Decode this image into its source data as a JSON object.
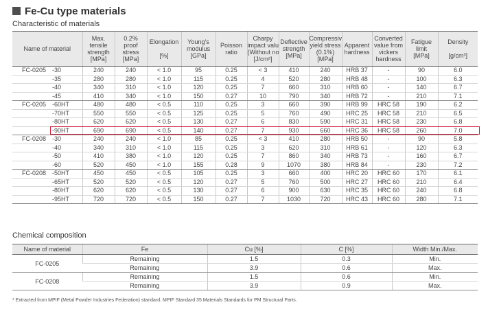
{
  "title": "Fe-Cu type materials",
  "char_section": "Characteristic of materials",
  "char_headers": [
    [
      "Name of material"
    ],
    [
      "Max.",
      "tensile",
      "strength",
      "[MPa]"
    ],
    [
      "0.2%",
      "proof",
      "stress",
      "[MPa]"
    ],
    [
      "Elongation",
      "",
      "[%]"
    ],
    [
      "Young's",
      "modulus",
      "[GPa]"
    ],
    [
      "Poisson",
      "ratio"
    ],
    [
      "Charpy",
      "impact value",
      "(Without notch)",
      "[J/cm²]"
    ],
    [
      "Deflective",
      "strength",
      "[MPa]"
    ],
    [
      "Compressive",
      "yield stress",
      "(0.1%)",
      "[MPa]"
    ],
    [
      "Apparent",
      "hardness"
    ],
    [
      "Converted",
      "value from",
      "vickers",
      "hardness"
    ],
    [
      "Fatigue",
      "limit",
      "[MPa]"
    ],
    [
      "Density",
      "",
      "[g/cm³]"
    ]
  ],
  "char_groups": [
    {
      "name": "FC-0205",
      "rows": [
        [
          "-30",
          "240",
          "240",
          "< 1.0",
          "95",
          "0.25",
          "< 3",
          "410",
          "240",
          "HRB 37",
          "-",
          "90",
          "6.0"
        ],
        [
          "-35",
          "280",
          "280",
          "< 1.0",
          "115",
          "0.25",
          "4",
          "520",
          "280",
          "HRB 48",
          "-",
          "100",
          "6.3"
        ],
        [
          "-40",
          "340",
          "310",
          "< 1.0",
          "120",
          "0.25",
          "7",
          "660",
          "310",
          "HRB 60",
          "-",
          "140",
          "6.7"
        ],
        [
          "-45",
          "410",
          "340",
          "< 1.0",
          "150",
          "0.27",
          "10",
          "790",
          "340",
          "HRB 72",
          "-",
          "210",
          "7.1"
        ]
      ]
    },
    {
      "name": "FC-0205",
      "rows": [
        [
          "-60HT",
          "480",
          "480",
          "< 0.5",
          "110",
          "0.25",
          "3",
          "660",
          "390",
          "HRB 99",
          "HRC 58",
          "190",
          "6.2"
        ],
        [
          "-70HT",
          "550",
          "550",
          "< 0.5",
          "125",
          "0.25",
          "5",
          "760",
          "490",
          "HRC 25",
          "HRC 58",
          "210",
          "6.5"
        ],
        [
          "-80HT",
          "620",
          "620",
          "< 0.5",
          "130",
          "0.27",
          "6",
          "830",
          "590",
          "HRC 31",
          "HRC 58",
          "230",
          "6.8"
        ],
        [
          "-90HT",
          "690",
          "690",
          "< 0.5",
          "140",
          "0.27",
          "7",
          "930",
          "660",
          "HRC 36",
          "HRC 58",
          "260",
          "7.0"
        ]
      ]
    },
    {
      "name": "FC-0208",
      "rows": [
        [
          "-30",
          "240",
          "240",
          "< 1.0",
          "85",
          "0.25",
          "< 3",
          "410",
          "280",
          "HRB 50",
          "-",
          "90",
          "5.8"
        ],
        [
          "-40",
          "340",
          "310",
          "< 1.0",
          "115",
          "0.25",
          "3",
          "620",
          "310",
          "HRB 61",
          "-",
          "120",
          "6.3"
        ],
        [
          "-50",
          "410",
          "380",
          "< 1.0",
          "120",
          "0.25",
          "7",
          "860",
          "340",
          "HRB 73",
          "-",
          "160",
          "6.7"
        ],
        [
          "-60",
          "520",
          "450",
          "< 1.0",
          "155",
          "0.28",
          "9",
          "1070",
          "380",
          "HRB 84",
          "-",
          "230",
          "7.2"
        ]
      ]
    },
    {
      "name": "FC-0208",
      "rows": [
        [
          "-50HT",
          "450",
          "450",
          "< 0.5",
          "105",
          "0.25",
          "3",
          "660",
          "400",
          "HRC 20",
          "HRC 60",
          "170",
          "6.1"
        ],
        [
          "-65HT",
          "520",
          "520",
          "< 0.5",
          "120",
          "0.27",
          "5",
          "760",
          "500",
          "HRC 27",
          "HRC 60",
          "210",
          "6.4"
        ],
        [
          "-80HT",
          "620",
          "620",
          "< 0.5",
          "130",
          "0.27",
          "6",
          "900",
          "630",
          "HRC 35",
          "HRC 60",
          "240",
          "6.8"
        ],
        [
          "-95HT",
          "720",
          "720",
          "< 0.5",
          "150",
          "0.27",
          "7",
          "1030",
          "720",
          "HRC 43",
          "HRC 60",
          "280",
          "7.1"
        ]
      ]
    }
  ],
  "highlight_color": "#d0203a",
  "chem_section": "Chemical composition",
  "chem_headers": [
    "Name of material",
    "Fe",
    "Cu [%]",
    "C [%]",
    "Width   Min./Max."
  ],
  "chem_groups": [
    {
      "name": "FC-0205",
      "rows": [
        [
          "Remaining",
          "1.5",
          "0.3",
          "Min."
        ],
        [
          "Remaining",
          "3.9",
          "0.6",
          "Max."
        ]
      ]
    },
    {
      "name": "FC-0208",
      "rows": [
        [
          "Remaining",
          "1.5",
          "0.6",
          "Min."
        ],
        [
          "Remaining",
          "3.9",
          "0.9",
          "Max."
        ]
      ]
    }
  ],
  "footnote": "* Extracted from MPIF (Metal Powder Industries Federation) standard. MPIF Standard 35 Materials Standards for PM Structural Parts."
}
